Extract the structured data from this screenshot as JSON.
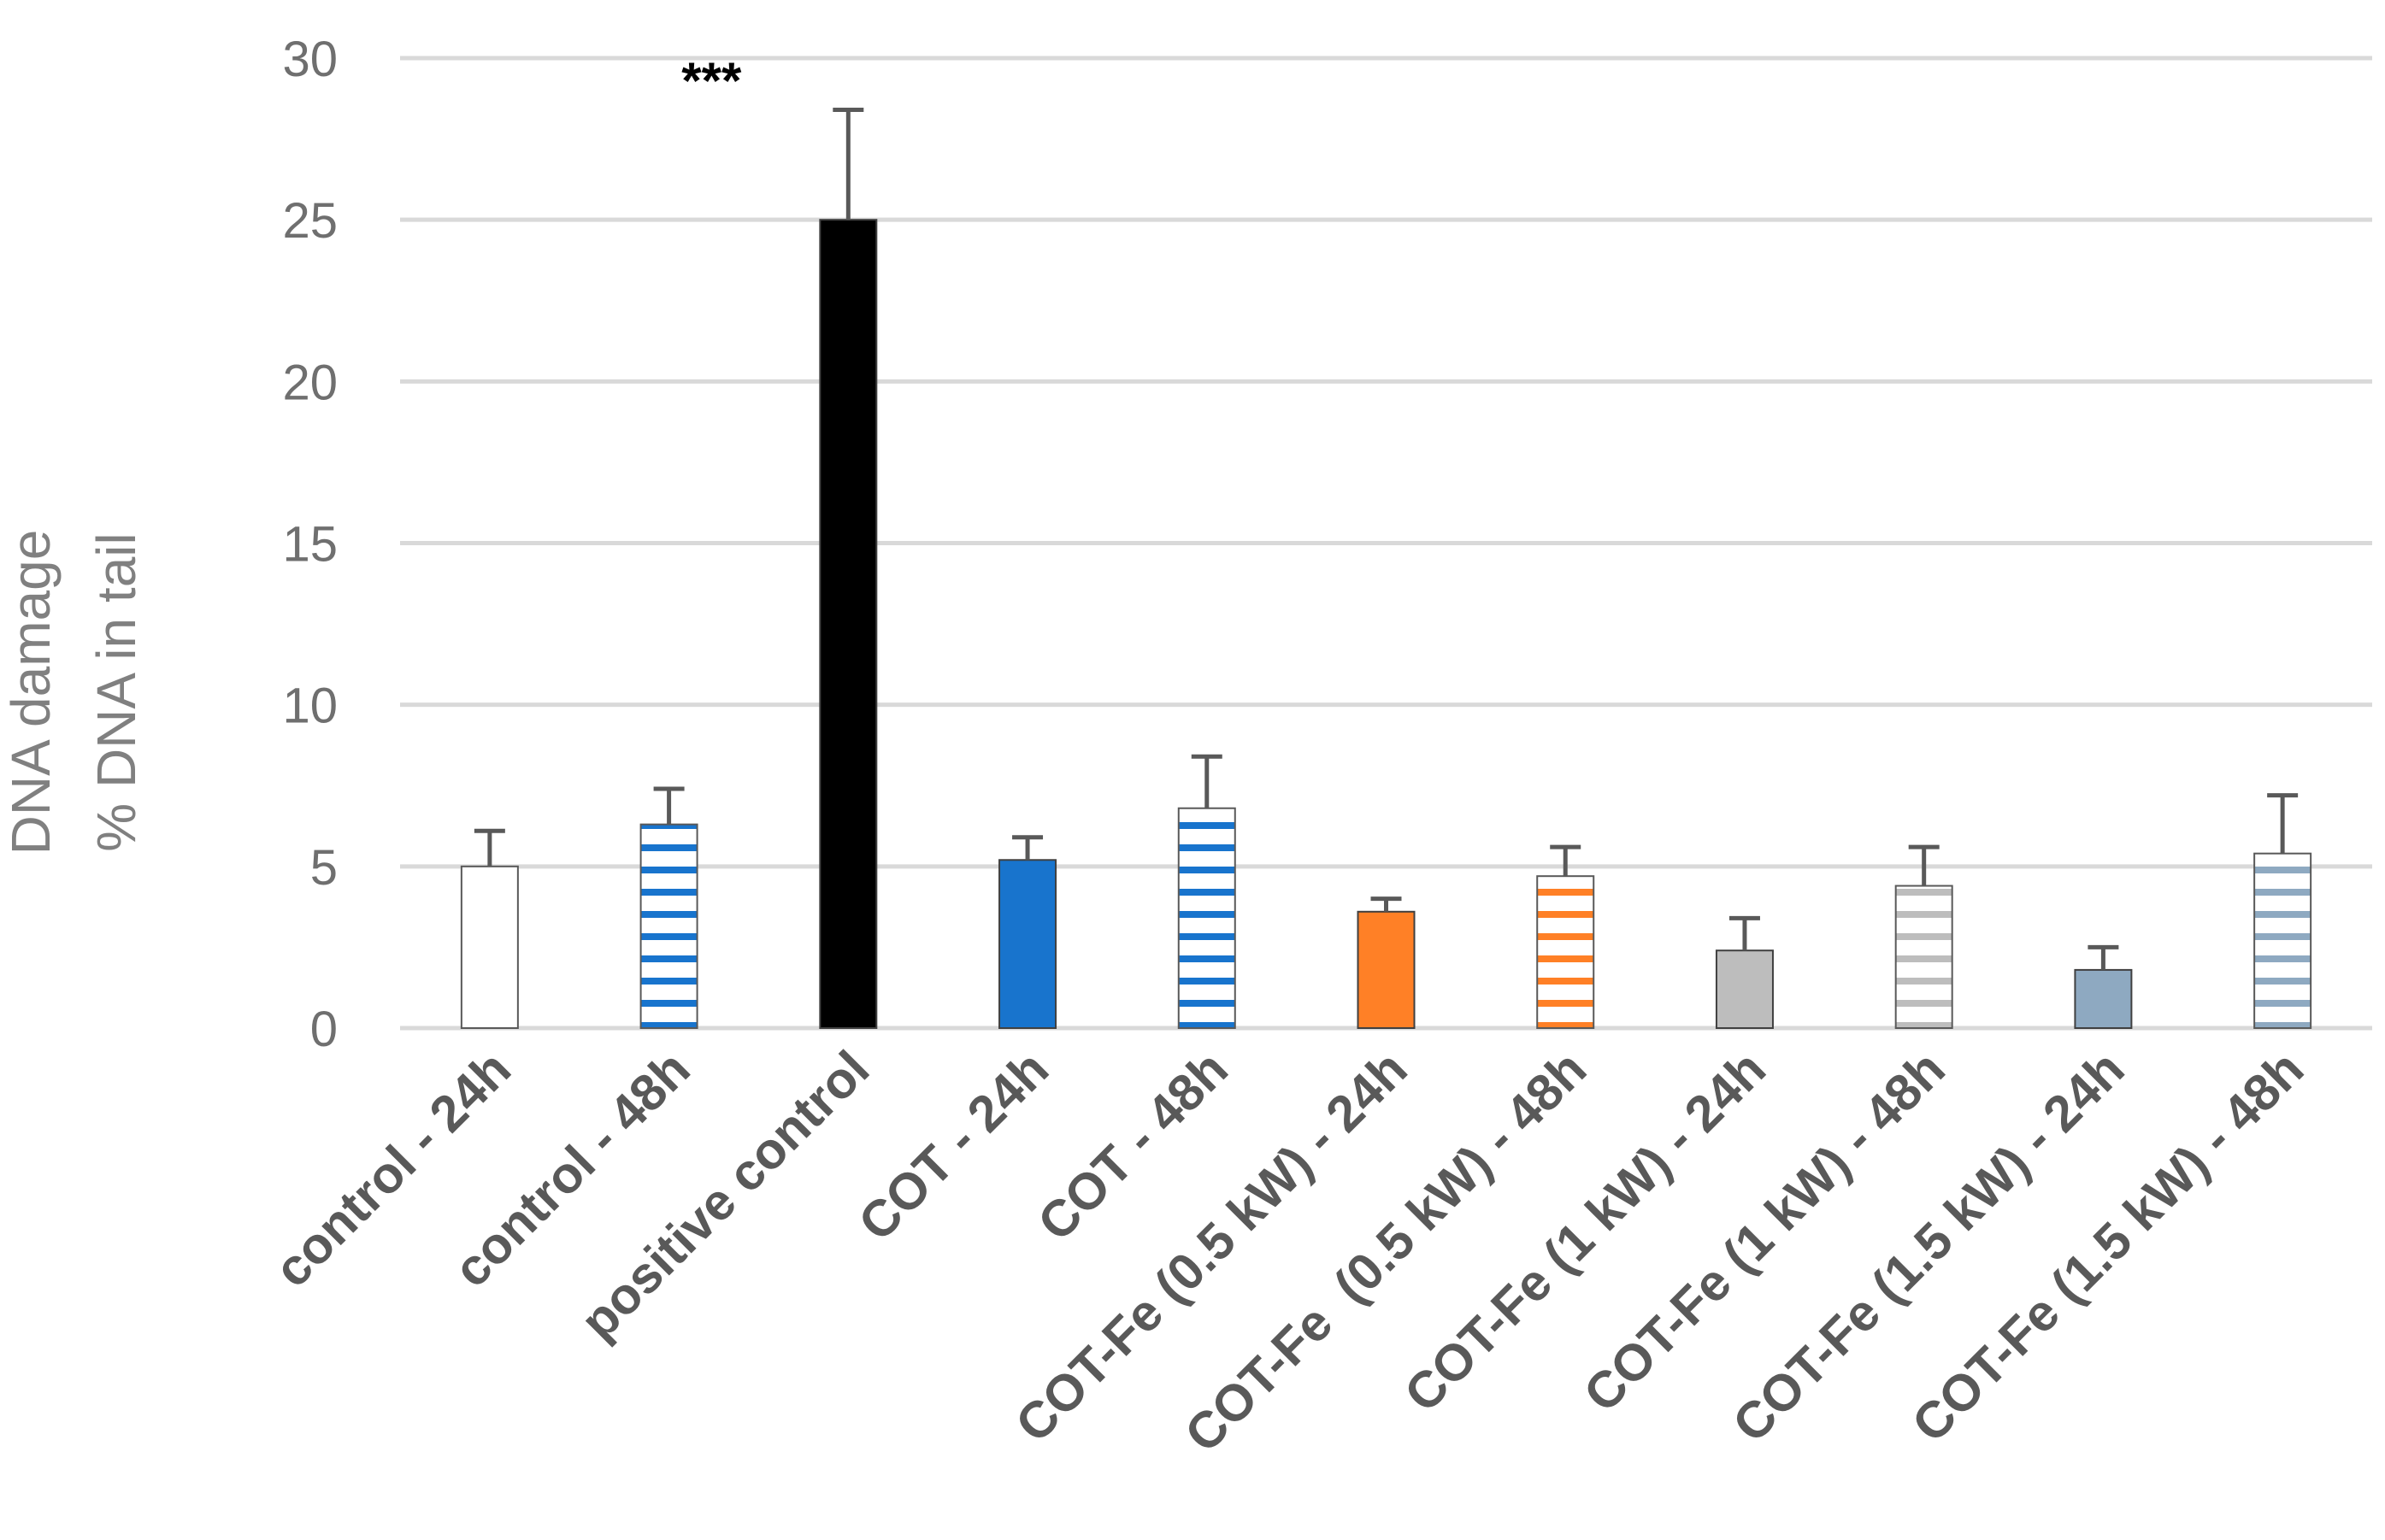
{
  "chart_data": {
    "type": "bar",
    "title": "",
    "ylabel": [
      "DNA damage",
      "% DNA in tail"
    ],
    "xlabel": "",
    "ylim": [
      0,
      30
    ],
    "yticks": [
      0,
      5,
      10,
      15,
      20,
      25,
      30
    ],
    "grid": true,
    "categories": [
      "control - 24h",
      "control - 48h",
      "positive control",
      "COT - 24h",
      "COT - 48h",
      "COT-Fe (0.5 kW) - 24h",
      "COT-Fe  (0.5 kW) - 48h",
      "COT-Fe (1 kW) - 24h",
      "COT-Fe (1 kW) - 48h",
      "COT-Fe (1.5 kW) - 24h",
      "COT-Fe (1.5 kW) - 48h"
    ],
    "values": [
      5.0,
      6.3,
      25.0,
      5.2,
      6.8,
      3.6,
      4.7,
      2.4,
      4.4,
      1.8,
      5.4
    ],
    "errors": [
      1.1,
      1.1,
      3.4,
      0.7,
      1.6,
      0.4,
      0.9,
      1.0,
      1.2,
      0.7,
      1.8
    ],
    "fill_colors": [
      "#ffffff",
      "#1874cd",
      "#000000",
      "#1874cd",
      "#1874cd",
      "#ff8026",
      "#ff8026",
      "#bdbdbd",
      "#bdbdbd",
      "#8ea9c1",
      "#8ea9c1"
    ],
    "patterns": [
      "solid",
      "horizontal-stripes",
      "solid",
      "solid",
      "horizontal-stripes",
      "solid",
      "horizontal-stripes",
      "solid",
      "horizontal-stripes",
      "solid",
      "horizontal-stripes"
    ],
    "annotations": [
      {
        "category": "positive control",
        "text": "***"
      }
    ]
  }
}
